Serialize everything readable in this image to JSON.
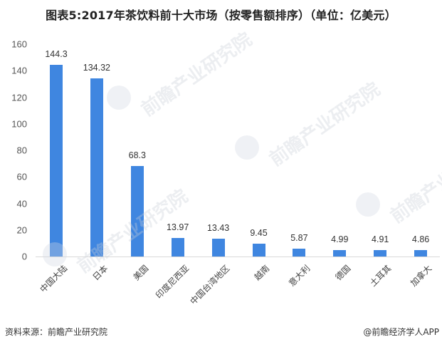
{
  "title": "图表5:2017年茶饮料前十大市场（按零售额排序）（单位：亿美元）",
  "chart_data": {
    "type": "bar",
    "title": "图表5:2017年茶饮料前十大市场（按零售额排序）（单位：亿美元）",
    "xlabel": "",
    "ylabel": "亿美元",
    "categories": [
      "中国大陆",
      "日本",
      "美国",
      "印度尼西亚",
      "中国台湾地区",
      "越南",
      "意大利",
      "德国",
      "土耳其",
      "加拿大"
    ],
    "values": [
      144.3,
      134.32,
      68.3,
      13.97,
      13.43,
      9.45,
      5.87,
      4.99,
      4.91,
      4.86
    ],
    "value_labels": [
      "144.3",
      "134.32",
      "68.3",
      "13.97",
      "13.43",
      "9.45",
      "5.87",
      "4.99",
      "4.91",
      "4.86"
    ],
    "ylim": [
      0,
      160
    ],
    "yticks": [
      "0",
      "20",
      "40",
      "60",
      "80",
      "100",
      "120",
      "140",
      "160"
    ],
    "grid": false,
    "legend": null,
    "bar_color": "#3f86e0"
  },
  "footer": {
    "source": "资料来源：前瞻产业研究院",
    "credit": "@前瞻经济学人APP"
  },
  "watermark": {
    "text": "前瞻产业研究院"
  }
}
